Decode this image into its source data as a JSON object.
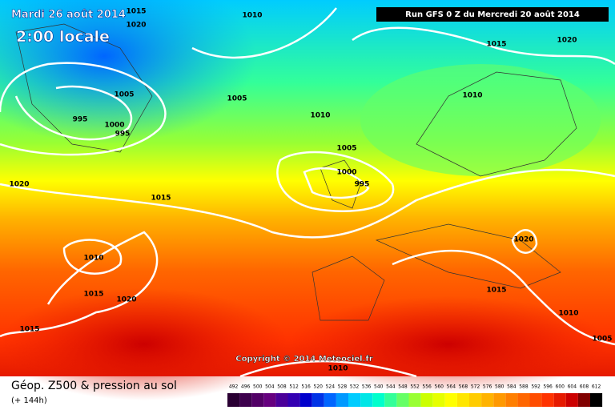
{
  "header": {
    "date": "Mardi 26 août 2014",
    "time": "2:00 locale",
    "run": "Run GFS 0 Z du Mercredi 20 août 2014"
  },
  "copyright": "Copyright © 2014 Meteociel.fr",
  "footer": {
    "title": "Géop. Z500 & pression au sol",
    "lead": "(+ 144h)"
  },
  "isobar_labels": [
    "1015",
    "1020",
    "1010",
    "1015",
    "1020",
    "1005",
    "1005",
    "1010",
    "995",
    "1000",
    "995",
    "1010",
    "1005",
    "1000",
    "995",
    "1020",
    "1015",
    "1020",
    "1010",
    "1015",
    "1020",
    "1015",
    "1010",
    "1015",
    "1005",
    "1010"
  ],
  "color_scale": {
    "values": [
      492,
      496,
      500,
      504,
      508,
      512,
      516,
      520,
      524,
      528,
      532,
      536,
      540,
      544,
      548,
      552,
      556,
      560,
      564,
      568,
      572,
      576,
      580,
      584,
      588,
      592,
      596,
      600,
      604,
      608,
      612
    ],
    "colors": [
      "#2a0033",
      "#3d004d",
      "#520066",
      "#66007f",
      "#4b0099",
      "#3300b2",
      "#0000cc",
      "#0033e6",
      "#0066ff",
      "#0099ff",
      "#00ccff",
      "#00e6e6",
      "#00ffcc",
      "#33ff99",
      "#66ff66",
      "#99ff33",
      "#ccff00",
      "#e6ff00",
      "#ffff00",
      "#ffe600",
      "#ffcc00",
      "#ffb300",
      "#ff9900",
      "#ff7f00",
      "#ff6600",
      "#ff4d00",
      "#ff3300",
      "#e61a00",
      "#cc0000",
      "#800000",
      "#000000"
    ]
  }
}
